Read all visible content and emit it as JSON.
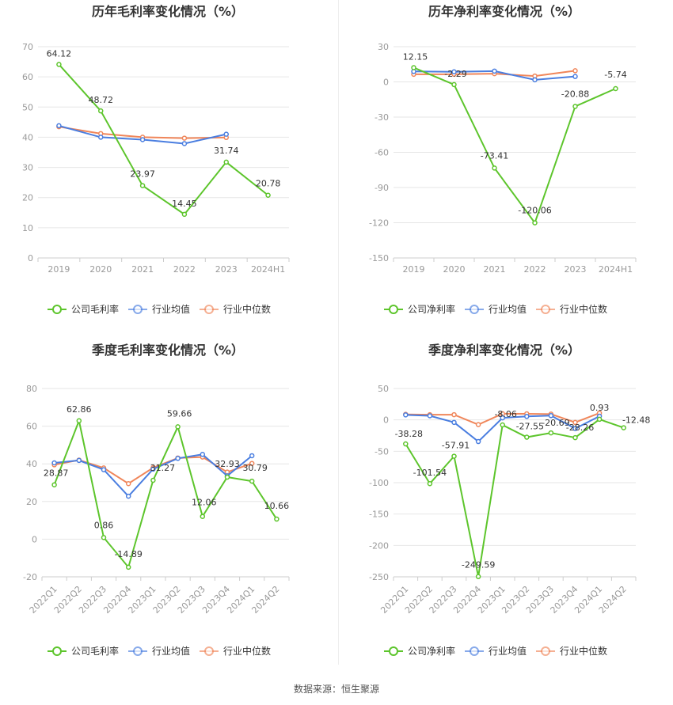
{
  "source_label": "数据来源：恒生聚源",
  "colors": {
    "company": "#5dc52c",
    "avg": "#4a7ee0",
    "median": "#f0865a",
    "grid": "#e6e6e6",
    "axis": "#cccccc"
  },
  "chart_data": [
    {
      "type": "line",
      "title": "历年毛利率变化情况（%）",
      "categories": [
        "2019",
        "2020",
        "2021",
        "2022",
        "2023",
        "2024H1"
      ],
      "ylim": [
        0,
        70
      ],
      "yticks": [
        0,
        10,
        20,
        30,
        40,
        50,
        60,
        70
      ],
      "x_rotated": false,
      "series": [
        {
          "name": "公司毛利率",
          "values": [
            64.12,
            48.72,
            23.97,
            14.45,
            31.74,
            20.78
          ],
          "labels": [
            "64.12",
            "48.72",
            "23.97",
            "14.45",
            "31.74",
            "20.78"
          ]
        },
        {
          "name": "行业均值",
          "values": [
            43.8,
            40.0,
            39.2,
            37.9,
            41.0,
            null
          ]
        },
        {
          "name": "行业中位数",
          "values": [
            43.5,
            41.2,
            40.0,
            39.7,
            39.9,
            null
          ]
        }
      ]
    },
    {
      "type": "line",
      "title": "历年净利率变化情况（%）",
      "categories": [
        "2019",
        "2020",
        "2021",
        "2022",
        "2023",
        "2024H1"
      ],
      "ylim": [
        -150,
        30
      ],
      "yticks": [
        -150,
        -120,
        -90,
        -60,
        -30,
        0,
        30
      ],
      "x_rotated": false,
      "series": [
        {
          "name": "公司净利率",
          "values": [
            12.15,
            -2.29,
            -73.41,
            -120.06,
            -20.88,
            -5.74
          ],
          "labels": [
            "12.15",
            "-2.29",
            "-73.41",
            "-120.06",
            "-20.88",
            "-5.74"
          ]
        },
        {
          "name": "行业均值",
          "values": [
            8.9,
            8.6,
            9.2,
            1.8,
            4.6,
            null
          ]
        },
        {
          "name": "行业中位数",
          "values": [
            6.5,
            6.5,
            7.0,
            5.0,
            9.5,
            null
          ]
        }
      ]
    },
    {
      "type": "line",
      "title": "季度毛利率变化情况（%）",
      "categories": [
        "2022Q1",
        "2022Q2",
        "2022Q3",
        "2022Q4",
        "2023Q1",
        "2023Q2",
        "2023Q3",
        "2023Q4",
        "2024Q1",
        "2024Q2"
      ],
      "ylim": [
        -20,
        80
      ],
      "yticks": [
        -20,
        0,
        20,
        40,
        60,
        80
      ],
      "x_rotated": true,
      "series": [
        {
          "name": "公司毛利率",
          "values": [
            28.87,
            62.86,
            0.86,
            -14.89,
            31.27,
            59.66,
            12.06,
            32.93,
            30.79,
            10.66
          ],
          "labels": [
            "28.87",
            "62.86",
            "0.86",
            "-14.89",
            "31.27",
            "59.66",
            "12.06",
            "32.93",
            "30.79",
            "10.66"
          ]
        },
        {
          "name": "行业均值",
          "values": [
            40.5,
            41.8,
            36.9,
            22.8,
            37.2,
            42.9,
            45.0,
            33.6,
            44.3,
            null
          ]
        },
        {
          "name": "行业中位数",
          "values": [
            39.5,
            42.0,
            37.8,
            29.5,
            37.9,
            43.1,
            43.6,
            35.6,
            40.2,
            null
          ]
        }
      ]
    },
    {
      "type": "line",
      "title": "季度净利率变化情况（%）",
      "categories": [
        "2022Q1",
        "2022Q2",
        "2022Q3",
        "2022Q4",
        "2023Q1",
        "2023Q2",
        "2023Q3",
        "2023Q4",
        "2024Q1",
        "2024Q2"
      ],
      "ylim": [
        -250,
        50
      ],
      "yticks": [
        -250,
        -200,
        -150,
        -100,
        -50,
        0,
        50
      ],
      "x_rotated": true,
      "series": [
        {
          "name": "公司净利率",
          "values": [
            -38.28,
            -101.54,
            -57.91,
            -249.59,
            -8.06,
            -27.55,
            -20.69,
            -28.26,
            0.93,
            -12.48
          ],
          "labels": [
            "-38.28",
            "-101.54",
            "-57.91",
            "-249.59",
            "-8.06",
            "-27.55",
            "-20.69",
            "-28.26",
            "0.93",
            "-12.48"
          ]
        },
        {
          "name": "行业均值",
          "values": [
            8.0,
            6.5,
            -4.0,
            -34.5,
            3.2,
            5.5,
            6.8,
            -13.8,
            5.9,
            null
          ]
        },
        {
          "name": "行业中位数",
          "values": [
            8.8,
            8.2,
            8.3,
            -7.5,
            9.8,
            9.7,
            9.2,
            -4.0,
            10.8,
            null
          ]
        }
      ]
    }
  ]
}
